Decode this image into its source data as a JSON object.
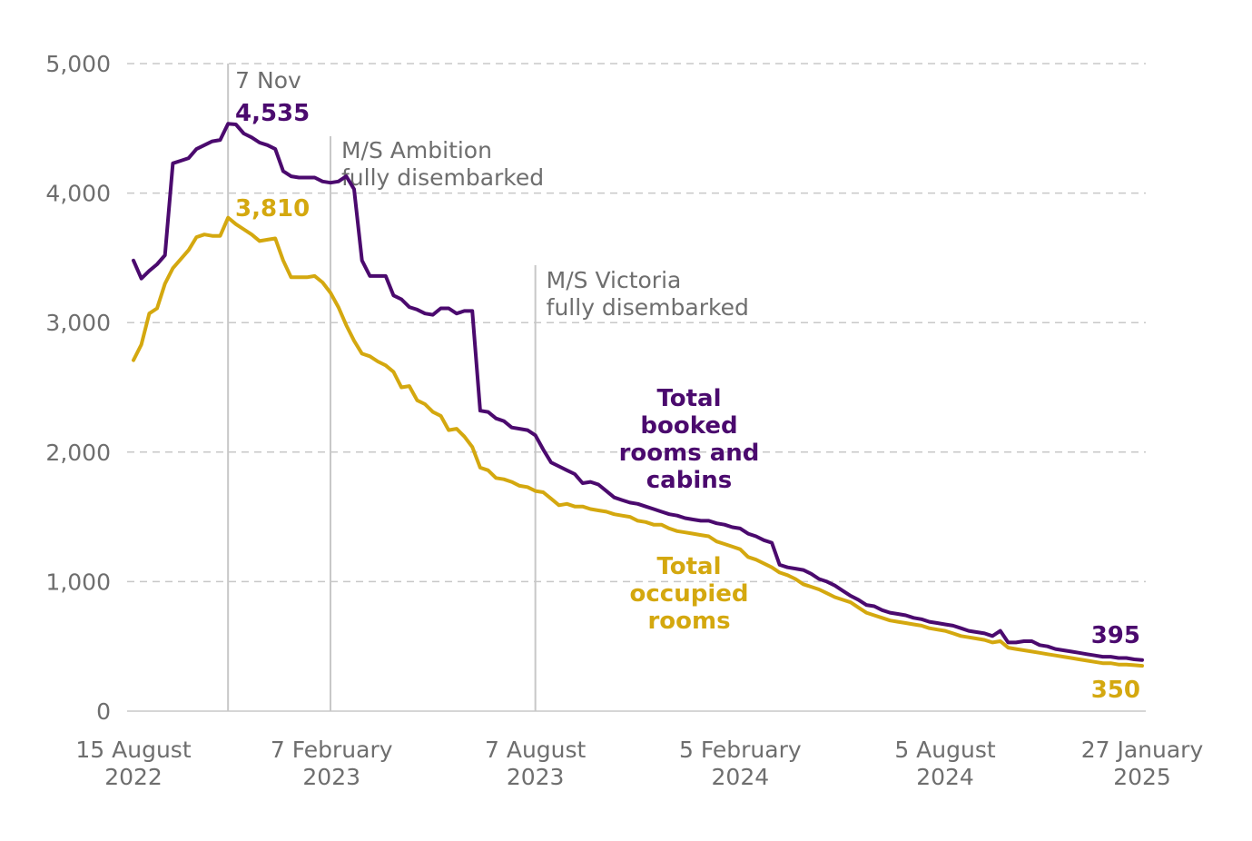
{
  "colors": {
    "booked": "#4b0a6e",
    "occupied": "#d4a80f",
    "grid": "#c8c8c8",
    "marker": "#c8c8c8",
    "text": "#6e6e6e"
  },
  "chart_data": {
    "type": "line",
    "title": "",
    "xlabel": "",
    "ylabel": "",
    "ylim": [
      0,
      5000
    ],
    "grid": true,
    "y_ticks": [
      {
        "value": 0,
        "label": "0"
      },
      {
        "value": 1000,
        "label": "1,000"
      },
      {
        "value": 2000,
        "label": "2,000"
      },
      {
        "value": 3000,
        "label": "3,000"
      },
      {
        "value": 4000,
        "label": "4,000"
      },
      {
        "value": 5000,
        "label": "5,000"
      }
    ],
    "x_ticks": [
      {
        "date": "2022-08-15",
        "line1": "15 August",
        "line2": "2022"
      },
      {
        "date": "2023-02-07",
        "line1": "7 February",
        "line2": "2023"
      },
      {
        "date": "2023-08-07",
        "line1": "7 August",
        "line2": "2023"
      },
      {
        "date": "2024-02-05",
        "line1": "5 February",
        "line2": "2024"
      },
      {
        "date": "2024-08-05",
        "line1": "5 August",
        "line2": "2024"
      },
      {
        "date": "2025-01-27",
        "line1": "27 January",
        "line2": "2025"
      }
    ],
    "markers": [
      {
        "date": "2022-11-07",
        "lines": [
          "7 Nov"
        ]
      },
      {
        "date": "2023-02-06",
        "lines": [
          "M/S Ambition",
          "fully disembarked"
        ]
      },
      {
        "date": "2023-08-07",
        "lines": [
          "M/S Victoria",
          "fully disembarked"
        ]
      }
    ],
    "series": [
      {
        "id": "booked",
        "name": "Total booked rooms and cabins",
        "label_lines": [
          "Total",
          "booked",
          "rooms and",
          "cabins"
        ],
        "peak_label": "4,535",
        "end_label": "395",
        "points": [
          [
            "2022-08-15",
            3480
          ],
          [
            "2022-08-22",
            3340
          ],
          [
            "2022-08-29",
            3400
          ],
          [
            "2022-09-05",
            3450
          ],
          [
            "2022-09-12",
            3520
          ],
          [
            "2022-09-19",
            4230
          ],
          [
            "2022-09-26",
            4250
          ],
          [
            "2022-10-03",
            4270
          ],
          [
            "2022-10-10",
            4340
          ],
          [
            "2022-10-17",
            4370
          ],
          [
            "2022-10-24",
            4400
          ],
          [
            "2022-10-31",
            4410
          ],
          [
            "2022-11-07",
            4535
          ],
          [
            "2022-11-14",
            4530
          ],
          [
            "2022-11-21",
            4460
          ],
          [
            "2022-11-28",
            4430
          ],
          [
            "2022-12-05",
            4390
          ],
          [
            "2022-12-12",
            4370
          ],
          [
            "2022-12-19",
            4340
          ],
          [
            "2022-12-26",
            4170
          ],
          [
            "2023-01-02",
            4130
          ],
          [
            "2023-01-09",
            4120
          ],
          [
            "2023-01-16",
            4120
          ],
          [
            "2023-01-23",
            4120
          ],
          [
            "2023-01-30",
            4090
          ],
          [
            "2023-02-06",
            4080
          ],
          [
            "2023-02-13",
            4090
          ],
          [
            "2023-02-20",
            4130
          ],
          [
            "2023-02-27",
            4030
          ],
          [
            "2023-03-06",
            3480
          ],
          [
            "2023-03-13",
            3360
          ],
          [
            "2023-03-20",
            3360
          ],
          [
            "2023-03-27",
            3360
          ],
          [
            "2023-04-03",
            3210
          ],
          [
            "2023-04-10",
            3180
          ],
          [
            "2023-04-17",
            3120
          ],
          [
            "2023-04-24",
            3100
          ],
          [
            "2023-05-01",
            3070
          ],
          [
            "2023-05-08",
            3060
          ],
          [
            "2023-05-15",
            3110
          ],
          [
            "2023-05-22",
            3110
          ],
          [
            "2023-05-29",
            3070
          ],
          [
            "2023-06-05",
            3090
          ],
          [
            "2023-06-12",
            3090
          ],
          [
            "2023-06-19",
            2320
          ],
          [
            "2023-06-26",
            2310
          ],
          [
            "2023-07-03",
            2260
          ],
          [
            "2023-07-10",
            2240
          ],
          [
            "2023-07-17",
            2190
          ],
          [
            "2023-07-24",
            2180
          ],
          [
            "2023-07-31",
            2170
          ],
          [
            "2023-08-07",
            2130
          ],
          [
            "2023-08-14",
            2020
          ],
          [
            "2023-08-21",
            1920
          ],
          [
            "2023-08-28",
            1890
          ],
          [
            "2023-09-04",
            1860
          ],
          [
            "2023-09-11",
            1830
          ],
          [
            "2023-09-18",
            1760
          ],
          [
            "2023-09-25",
            1770
          ],
          [
            "2023-10-02",
            1750
          ],
          [
            "2023-10-09",
            1700
          ],
          [
            "2023-10-16",
            1650
          ],
          [
            "2023-10-23",
            1630
          ],
          [
            "2023-10-30",
            1610
          ],
          [
            "2023-11-06",
            1600
          ],
          [
            "2023-11-13",
            1580
          ],
          [
            "2023-11-20",
            1560
          ],
          [
            "2023-11-27",
            1540
          ],
          [
            "2023-12-04",
            1520
          ],
          [
            "2023-12-11",
            1510
          ],
          [
            "2023-12-18",
            1490
          ],
          [
            "2023-12-25",
            1480
          ],
          [
            "2024-01-01",
            1470
          ],
          [
            "2024-01-08",
            1470
          ],
          [
            "2024-01-15",
            1450
          ],
          [
            "2024-01-22",
            1440
          ],
          [
            "2024-01-29",
            1420
          ],
          [
            "2024-02-05",
            1410
          ],
          [
            "2024-02-12",
            1370
          ],
          [
            "2024-02-19",
            1350
          ],
          [
            "2024-02-26",
            1320
          ],
          [
            "2024-03-04",
            1300
          ],
          [
            "2024-03-11",
            1130
          ],
          [
            "2024-03-18",
            1110
          ],
          [
            "2024-03-25",
            1100
          ],
          [
            "2024-04-01",
            1090
          ],
          [
            "2024-04-08",
            1060
          ],
          [
            "2024-04-15",
            1020
          ],
          [
            "2024-04-22",
            1000
          ],
          [
            "2024-04-29",
            970
          ],
          [
            "2024-05-06",
            930
          ],
          [
            "2024-05-13",
            890
          ],
          [
            "2024-05-20",
            860
          ],
          [
            "2024-05-27",
            820
          ],
          [
            "2024-06-03",
            810
          ],
          [
            "2024-06-10",
            780
          ],
          [
            "2024-06-17",
            760
          ],
          [
            "2024-06-24",
            750
          ],
          [
            "2024-07-01",
            740
          ],
          [
            "2024-07-08",
            720
          ],
          [
            "2024-07-15",
            710
          ],
          [
            "2024-07-22",
            690
          ],
          [
            "2024-07-29",
            680
          ],
          [
            "2024-08-05",
            670
          ],
          [
            "2024-08-12",
            660
          ],
          [
            "2024-08-19",
            640
          ],
          [
            "2024-08-26",
            620
          ],
          [
            "2024-09-02",
            610
          ],
          [
            "2024-09-09",
            600
          ],
          [
            "2024-09-16",
            580
          ],
          [
            "2024-09-23",
            620
          ],
          [
            "2024-09-30",
            530
          ],
          [
            "2024-10-07",
            530
          ],
          [
            "2024-10-14",
            540
          ],
          [
            "2024-10-21",
            540
          ],
          [
            "2024-10-28",
            510
          ],
          [
            "2024-11-04",
            500
          ],
          [
            "2024-11-11",
            480
          ],
          [
            "2024-11-18",
            470
          ],
          [
            "2024-11-25",
            460
          ],
          [
            "2024-12-02",
            450
          ],
          [
            "2024-12-09",
            440
          ],
          [
            "2024-12-16",
            430
          ],
          [
            "2024-12-23",
            420
          ],
          [
            "2024-12-30",
            420
          ],
          [
            "2025-01-06",
            410
          ],
          [
            "2025-01-13",
            410
          ],
          [
            "2025-01-20",
            400
          ],
          [
            "2025-01-27",
            395
          ]
        ]
      },
      {
        "id": "occupied",
        "name": "Total occupied rooms",
        "label_lines": [
          "Total",
          "occupied",
          "rooms"
        ],
        "peak_label": "3,810",
        "end_label": "350",
        "points": [
          [
            "2022-08-15",
            2710
          ],
          [
            "2022-08-22",
            2830
          ],
          [
            "2022-08-29",
            3070
          ],
          [
            "2022-09-05",
            3110
          ],
          [
            "2022-09-12",
            3300
          ],
          [
            "2022-09-19",
            3420
          ],
          [
            "2022-09-26",
            3490
          ],
          [
            "2022-10-03",
            3560
          ],
          [
            "2022-10-10",
            3660
          ],
          [
            "2022-10-17",
            3680
          ],
          [
            "2022-10-24",
            3670
          ],
          [
            "2022-10-31",
            3670
          ],
          [
            "2022-11-07",
            3810
          ],
          [
            "2022-11-14",
            3760
          ],
          [
            "2022-11-21",
            3720
          ],
          [
            "2022-11-28",
            3680
          ],
          [
            "2022-12-05",
            3630
          ],
          [
            "2022-12-12",
            3640
          ],
          [
            "2022-12-19",
            3650
          ],
          [
            "2022-12-26",
            3480
          ],
          [
            "2023-01-02",
            3350
          ],
          [
            "2023-01-09",
            3350
          ],
          [
            "2023-01-16",
            3350
          ],
          [
            "2023-01-23",
            3360
          ],
          [
            "2023-01-30",
            3310
          ],
          [
            "2023-02-06",
            3230
          ],
          [
            "2023-02-13",
            3120
          ],
          [
            "2023-02-20",
            2980
          ],
          [
            "2023-02-27",
            2860
          ],
          [
            "2023-03-06",
            2760
          ],
          [
            "2023-03-13",
            2740
          ],
          [
            "2023-03-20",
            2700
          ],
          [
            "2023-03-27",
            2670
          ],
          [
            "2023-04-03",
            2620
          ],
          [
            "2023-04-10",
            2500
          ],
          [
            "2023-04-17",
            2510
          ],
          [
            "2023-04-24",
            2400
          ],
          [
            "2023-05-01",
            2370
          ],
          [
            "2023-05-08",
            2310
          ],
          [
            "2023-05-15",
            2280
          ],
          [
            "2023-05-22",
            2170
          ],
          [
            "2023-05-29",
            2180
          ],
          [
            "2023-06-05",
            2120
          ],
          [
            "2023-06-12",
            2040
          ],
          [
            "2023-06-19",
            1880
          ],
          [
            "2023-06-26",
            1860
          ],
          [
            "2023-07-03",
            1800
          ],
          [
            "2023-07-10",
            1790
          ],
          [
            "2023-07-17",
            1770
          ],
          [
            "2023-07-24",
            1740
          ],
          [
            "2023-07-31",
            1730
          ],
          [
            "2023-08-07",
            1700
          ],
          [
            "2023-08-14",
            1690
          ],
          [
            "2023-08-21",
            1640
          ],
          [
            "2023-08-28",
            1590
          ],
          [
            "2023-09-04",
            1600
          ],
          [
            "2023-09-11",
            1580
          ],
          [
            "2023-09-18",
            1580
          ],
          [
            "2023-09-25",
            1560
          ],
          [
            "2023-10-02",
            1550
          ],
          [
            "2023-10-09",
            1540
          ],
          [
            "2023-10-16",
            1520
          ],
          [
            "2023-10-23",
            1510
          ],
          [
            "2023-10-30",
            1500
          ],
          [
            "2023-11-06",
            1470
          ],
          [
            "2023-11-13",
            1460
          ],
          [
            "2023-11-20",
            1440
          ],
          [
            "2023-11-27",
            1440
          ],
          [
            "2023-12-04",
            1410
          ],
          [
            "2023-12-11",
            1390
          ],
          [
            "2023-12-18",
            1380
          ],
          [
            "2023-12-25",
            1370
          ],
          [
            "2024-01-01",
            1360
          ],
          [
            "2024-01-08",
            1350
          ],
          [
            "2024-01-15",
            1310
          ],
          [
            "2024-01-22",
            1290
          ],
          [
            "2024-01-29",
            1270
          ],
          [
            "2024-02-05",
            1250
          ],
          [
            "2024-02-12",
            1190
          ],
          [
            "2024-02-19",
            1170
          ],
          [
            "2024-02-26",
            1140
          ],
          [
            "2024-03-04",
            1110
          ],
          [
            "2024-03-11",
            1070
          ],
          [
            "2024-03-18",
            1050
          ],
          [
            "2024-03-25",
            1020
          ],
          [
            "2024-04-01",
            980
          ],
          [
            "2024-04-08",
            960
          ],
          [
            "2024-04-15",
            940
          ],
          [
            "2024-04-22",
            910
          ],
          [
            "2024-04-29",
            880
          ],
          [
            "2024-05-06",
            860
          ],
          [
            "2024-05-13",
            840
          ],
          [
            "2024-05-20",
            800
          ],
          [
            "2024-05-27",
            760
          ],
          [
            "2024-06-03",
            740
          ],
          [
            "2024-06-10",
            720
          ],
          [
            "2024-06-17",
            700
          ],
          [
            "2024-06-24",
            690
          ],
          [
            "2024-07-01",
            680
          ],
          [
            "2024-07-08",
            670
          ],
          [
            "2024-07-15",
            660
          ],
          [
            "2024-07-22",
            640
          ],
          [
            "2024-07-29",
            630
          ],
          [
            "2024-08-05",
            620
          ],
          [
            "2024-08-12",
            600
          ],
          [
            "2024-08-19",
            580
          ],
          [
            "2024-08-26",
            570
          ],
          [
            "2024-09-02",
            560
          ],
          [
            "2024-09-09",
            550
          ],
          [
            "2024-09-16",
            530
          ],
          [
            "2024-09-23",
            540
          ],
          [
            "2024-09-30",
            490
          ],
          [
            "2024-10-07",
            480
          ],
          [
            "2024-10-14",
            470
          ],
          [
            "2024-10-21",
            460
          ],
          [
            "2024-10-28",
            450
          ],
          [
            "2024-11-04",
            440
          ],
          [
            "2024-11-11",
            430
          ],
          [
            "2024-11-18",
            420
          ],
          [
            "2024-11-25",
            410
          ],
          [
            "2024-12-02",
            400
          ],
          [
            "2024-12-09",
            390
          ],
          [
            "2024-12-16",
            380
          ],
          [
            "2024-12-23",
            370
          ],
          [
            "2024-12-30",
            370
          ],
          [
            "2025-01-06",
            360
          ],
          [
            "2025-01-13",
            360
          ],
          [
            "2025-01-20",
            355
          ],
          [
            "2025-01-27",
            350
          ]
        ]
      }
    ]
  }
}
